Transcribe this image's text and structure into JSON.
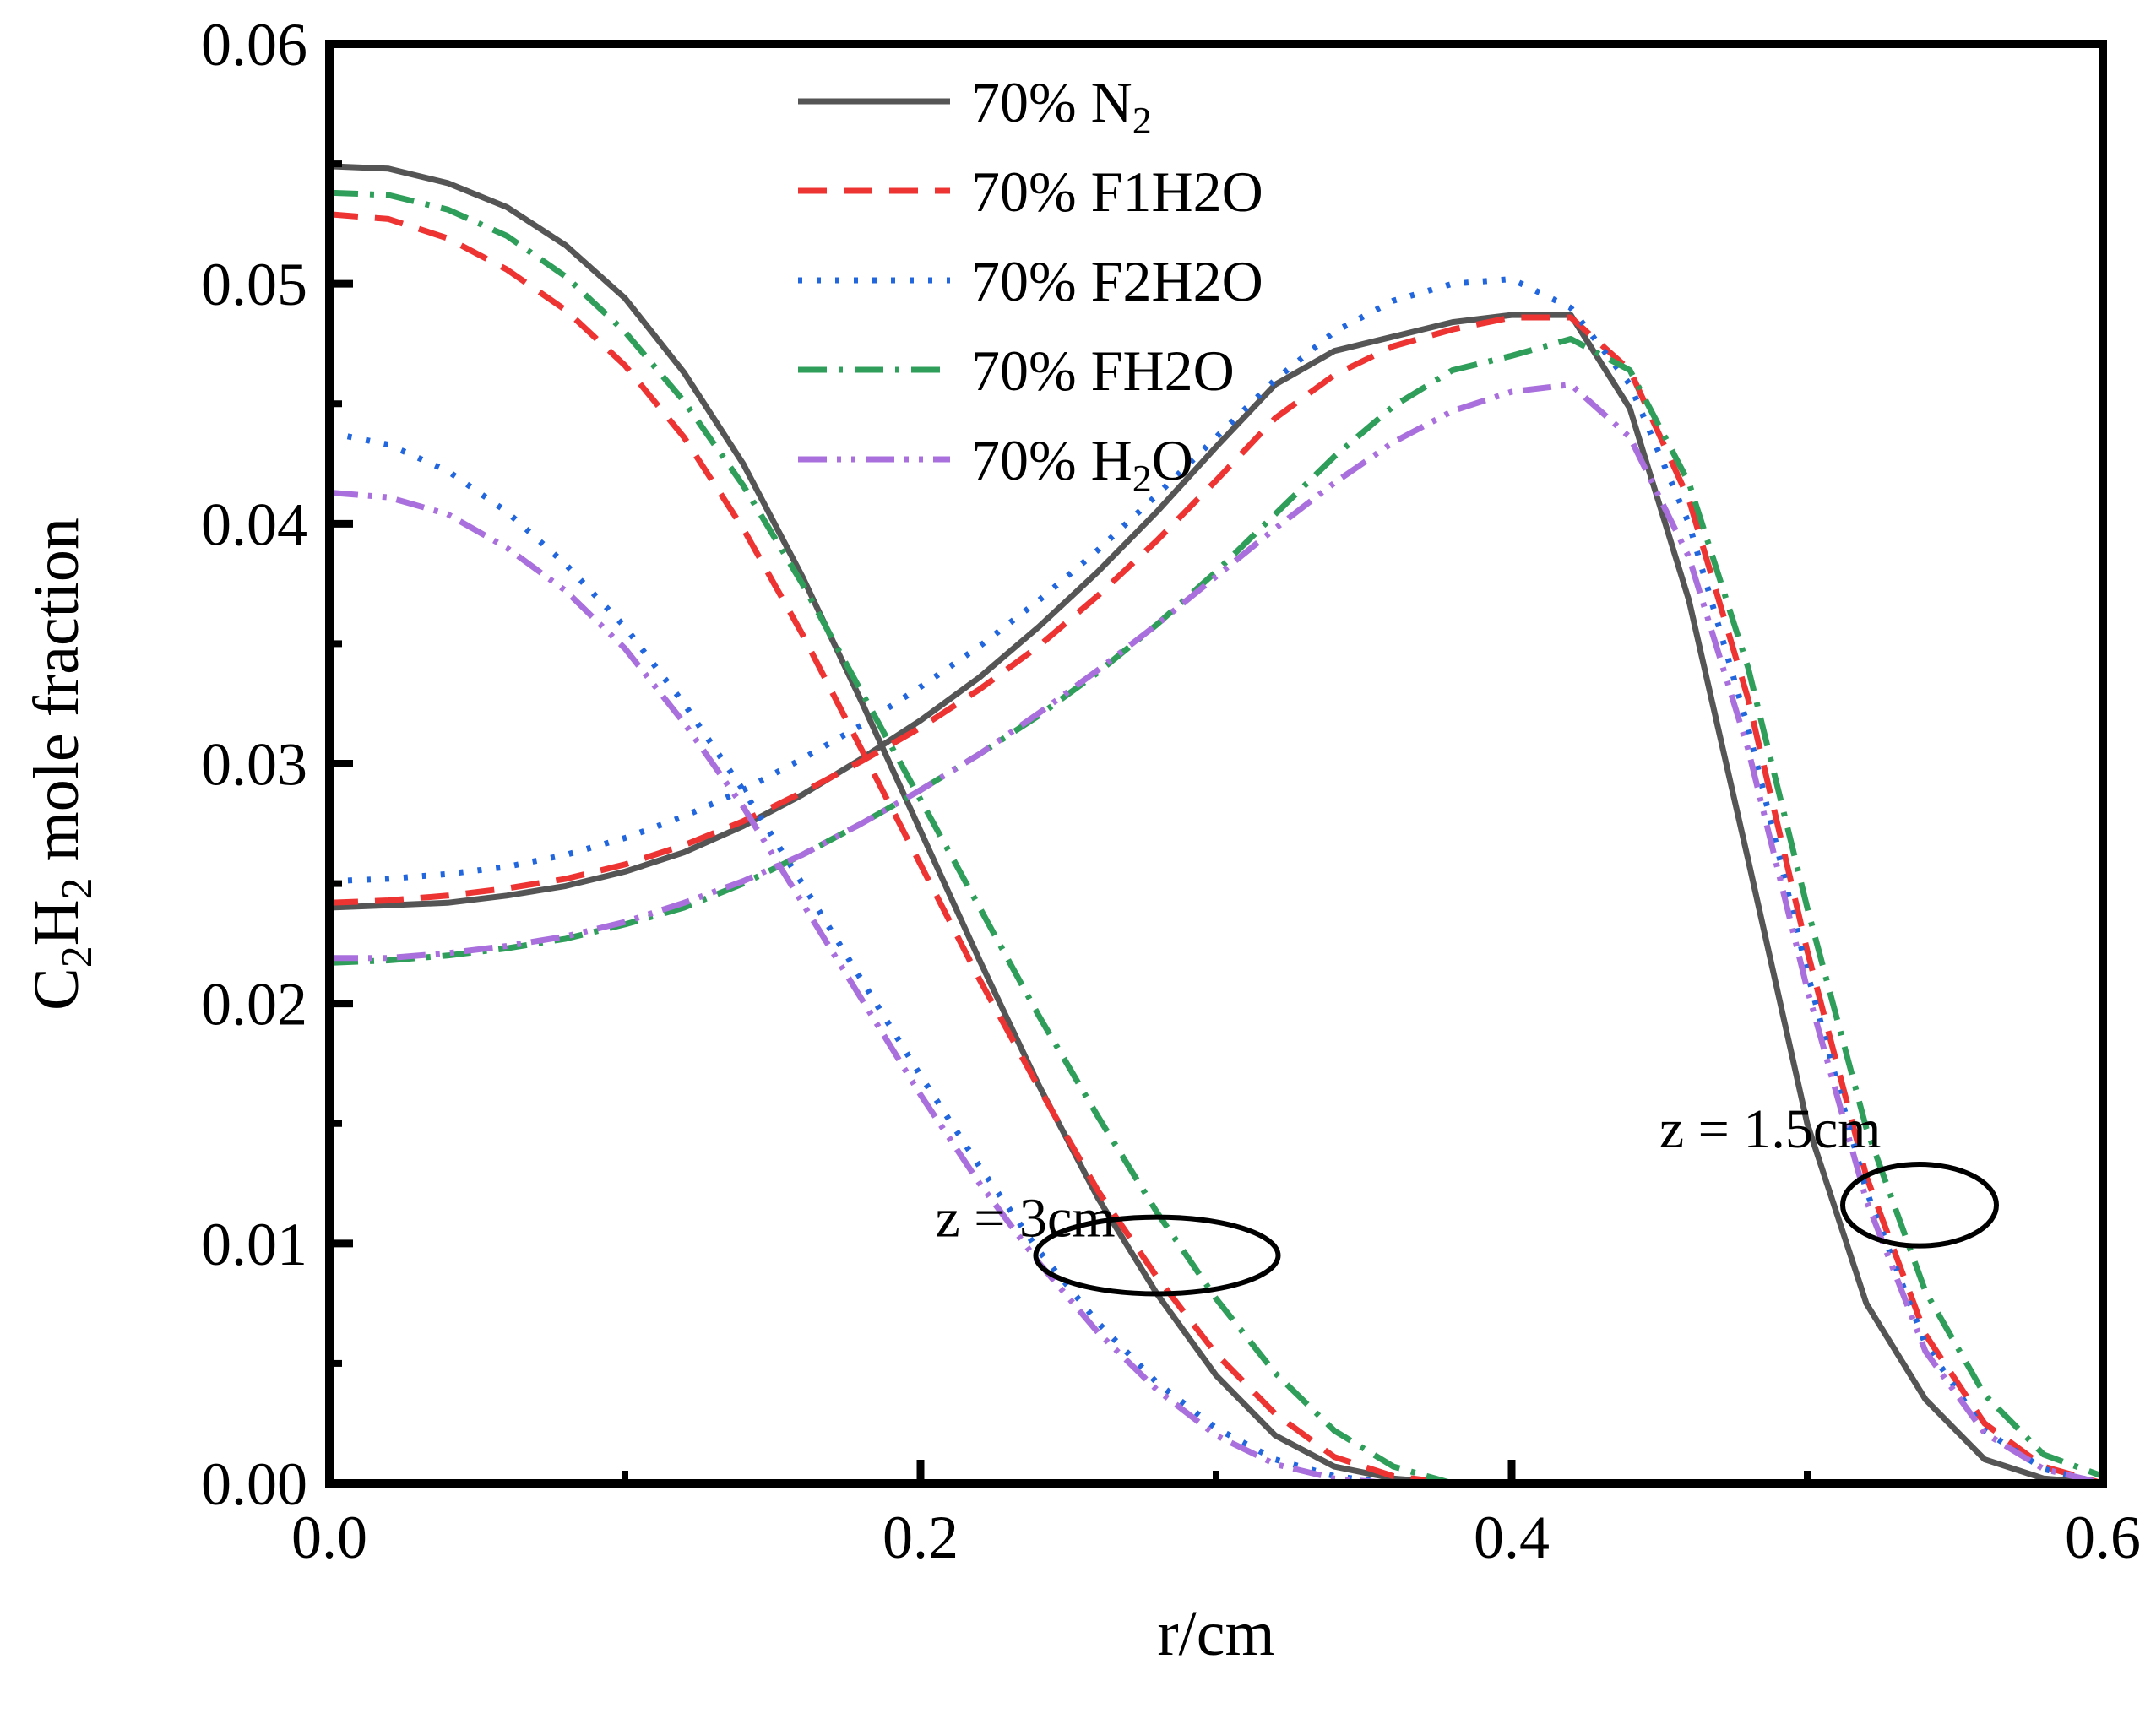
{
  "chart_data": {
    "type": "line",
    "title": "",
    "xlabel": "r/cm",
    "ylabel_parts": [
      "C",
      "2",
      "H",
      "2",
      " mole fraction"
    ],
    "xlim": [
      0.0,
      0.6
    ],
    "ylim": [
      0.0,
      0.06
    ],
    "xticks": [
      0.0,
      0.2,
      0.4,
      0.6
    ],
    "xtick_labels": [
      "0.0",
      "0.2",
      "0.4",
      "0.6"
    ],
    "yticks": [
      0.0,
      0.01,
      0.02,
      0.03,
      0.04,
      0.05,
      0.06
    ],
    "ytick_labels": [
      "0.00",
      "0.01",
      "0.02",
      "0.03",
      "0.04",
      "0.05",
      "0.06"
    ],
    "grid": false,
    "legend_position": "top-center",
    "series": [
      {
        "name": "70% N2",
        "label_main": "70% N",
        "label_sub": "2",
        "color": "#555555",
        "dash": "solid",
        "curves": [
          {
            "group": "z = 3cm",
            "x": [
              0.0,
              0.02,
              0.04,
              0.06,
              0.08,
              0.1,
              0.12,
              0.14,
              0.16,
              0.18,
              0.2,
              0.22,
              0.24,
              0.26,
              0.28,
              0.3,
              0.32,
              0.34,
              0.36,
              0.38,
              0.4,
              0.6
            ],
            "y": [
              0.0549,
              0.0548,
              0.0542,
              0.0532,
              0.0516,
              0.0494,
              0.0463,
              0.0425,
              0.0378,
              0.0326,
              0.0272,
              0.0218,
              0.0166,
              0.0119,
              0.0079,
              0.0045,
              0.002,
              0.0007,
              0.0002,
              0.0,
              0.0,
              0.0
            ]
          },
          {
            "group": "z = 1.5cm",
            "x": [
              0.0,
              0.02,
              0.04,
              0.06,
              0.08,
              0.1,
              0.12,
              0.14,
              0.16,
              0.18,
              0.2,
              0.22,
              0.24,
              0.26,
              0.28,
              0.3,
              0.32,
              0.34,
              0.36,
              0.38,
              0.4,
              0.42,
              0.44,
              0.46,
              0.48,
              0.5,
              0.52,
              0.54,
              0.56,
              0.58,
              0.6
            ],
            "y": [
              0.024,
              0.0241,
              0.0242,
              0.0245,
              0.0249,
              0.0255,
              0.0263,
              0.0274,
              0.0287,
              0.0302,
              0.0318,
              0.0336,
              0.0357,
              0.038,
              0.0405,
              0.0432,
              0.0458,
              0.0472,
              0.0478,
              0.0484,
              0.0487,
              0.0487,
              0.0448,
              0.0368,
              0.026,
              0.015,
              0.0075,
              0.0035,
              0.001,
              0.0002,
              0.0
            ]
          }
        ]
      },
      {
        "name": "70% F1H2O",
        "label_main": "70% F1H2O",
        "label_sub": "",
        "color": "#ee3333",
        "dash": "dash",
        "curves": [
          {
            "group": "z = 3cm",
            "x": [
              0.0,
              0.02,
              0.04,
              0.06,
              0.08,
              0.1,
              0.12,
              0.14,
              0.16,
              0.18,
              0.2,
              0.22,
              0.24,
              0.26,
              0.28,
              0.3,
              0.32,
              0.34,
              0.36,
              0.38,
              0.4,
              0.6
            ],
            "y": [
              0.0529,
              0.0527,
              0.0519,
              0.0506,
              0.0489,
              0.0466,
              0.0436,
              0.0398,
              0.0354,
              0.0306,
              0.0258,
              0.021,
              0.0165,
              0.0122,
              0.0086,
              0.0054,
              0.0029,
              0.0011,
              0.0003,
              0.0,
              0.0,
              0.0
            ]
          },
          {
            "group": "z = 1.5cm",
            "x": [
              0.0,
              0.02,
              0.04,
              0.06,
              0.08,
              0.1,
              0.12,
              0.14,
              0.16,
              0.18,
              0.2,
              0.22,
              0.24,
              0.26,
              0.28,
              0.3,
              0.32,
              0.34,
              0.36,
              0.38,
              0.4,
              0.42,
              0.44,
              0.46,
              0.48,
              0.5,
              0.52,
              0.54,
              0.56,
              0.58,
              0.6
            ],
            "y": [
              0.0242,
              0.0243,
              0.0245,
              0.0248,
              0.0252,
              0.0258,
              0.0266,
              0.0276,
              0.0288,
              0.0301,
              0.0315,
              0.0331,
              0.0349,
              0.037,
              0.0393,
              0.0418,
              0.0444,
              0.0462,
              0.0474,
              0.0481,
              0.0486,
              0.0486,
              0.0464,
              0.041,
              0.0327,
              0.0222,
              0.0128,
              0.0062,
              0.0025,
              0.0007,
              0.0
            ]
          }
        ]
      },
      {
        "name": "70% F2H2O",
        "label_main": "70% F2H2O",
        "label_sub": "",
        "color": "#2266dd",
        "dash": "dot",
        "curves": [
          {
            "group": "z = 3cm",
            "x": [
              0.0,
              0.02,
              0.04,
              0.06,
              0.08,
              0.1,
              0.12,
              0.14,
              0.16,
              0.18,
              0.2,
              0.22,
              0.24,
              0.26,
              0.28,
              0.3,
              0.32,
              0.34,
              0.36,
              0.6
            ],
            "y": [
              0.0438,
              0.0433,
              0.0422,
              0.0405,
              0.0383,
              0.0357,
              0.0325,
              0.0289,
              0.025,
              0.021,
              0.017,
              0.0132,
              0.0097,
              0.0067,
              0.0042,
              0.0023,
              0.001,
              0.0003,
              0.0,
              0.0
            ]
          },
          {
            "group": "z = 1.5cm",
            "x": [
              0.0,
              0.02,
              0.04,
              0.06,
              0.08,
              0.1,
              0.12,
              0.14,
              0.16,
              0.18,
              0.2,
              0.22,
              0.24,
              0.26,
              0.28,
              0.3,
              0.32,
              0.34,
              0.36,
              0.38,
              0.4,
              0.42,
              0.44,
              0.46,
              0.48,
              0.5,
              0.52,
              0.54,
              0.56,
              0.58,
              0.6
            ],
            "y": [
              0.0251,
              0.0252,
              0.0254,
              0.0257,
              0.0262,
              0.0269,
              0.0278,
              0.0289,
              0.0302,
              0.0316,
              0.0332,
              0.0349,
              0.0368,
              0.0389,
              0.0412,
              0.0436,
              0.046,
              0.048,
              0.0493,
              0.05,
              0.0502,
              0.049,
              0.0458,
              0.04,
              0.0315,
              0.0213,
              0.0122,
              0.0058,
              0.0022,
              0.0006,
              0.0
            ]
          }
        ]
      },
      {
        "name": "70% FH2O",
        "label_main": "70% FH2O",
        "label_sub": "",
        "color": "#2f9e5a",
        "dash": "dashdot",
        "curves": [
          {
            "group": "z = 3cm",
            "x": [
              0.0,
              0.02,
              0.04,
              0.06,
              0.08,
              0.1,
              0.12,
              0.14,
              0.16,
              0.18,
              0.2,
              0.22,
              0.24,
              0.26,
              0.28,
              0.3,
              0.32,
              0.34,
              0.36,
              0.38,
              0.4,
              0.6
            ],
            "y": [
              0.0538,
              0.0537,
              0.0531,
              0.052,
              0.0503,
              0.048,
              0.0451,
              0.0416,
              0.0375,
              0.033,
              0.0285,
              0.024,
              0.0195,
              0.0153,
              0.0113,
              0.0077,
              0.0046,
              0.0022,
              0.0007,
              0.0,
              0.0,
              0.0
            ]
          },
          {
            "group": "z = 1.5cm",
            "x": [
              0.0,
              0.02,
              0.04,
              0.06,
              0.08,
              0.1,
              0.12,
              0.14,
              0.16,
              0.18,
              0.2,
              0.22,
              0.24,
              0.26,
              0.28,
              0.3,
              0.32,
              0.34,
              0.36,
              0.38,
              0.4,
              0.42,
              0.44,
              0.46,
              0.48,
              0.5,
              0.52,
              0.54,
              0.56,
              0.58,
              0.6
            ],
            "y": [
              0.0217,
              0.0218,
              0.022,
              0.0223,
              0.0227,
              0.0233,
              0.024,
              0.025,
              0.0262,
              0.0275,
              0.0289,
              0.0304,
              0.032,
              0.0338,
              0.0358,
              0.038,
              0.0404,
              0.0428,
              0.0449,
              0.0464,
              0.047,
              0.0477,
              0.0464,
              0.0417,
              0.034,
              0.024,
              0.0148,
              0.008,
              0.0037,
              0.0012,
              0.0003
            ]
          }
        ]
      },
      {
        "name": "70% H2O",
        "label_main": "70% H",
        "label_sub": "2",
        "label_tail": "O",
        "color": "#a970dd",
        "dash": "dashdotdot",
        "curves": [
          {
            "group": "z = 3cm",
            "x": [
              0.0,
              0.02,
              0.04,
              0.06,
              0.08,
              0.1,
              0.12,
              0.14,
              0.16,
              0.18,
              0.2,
              0.22,
              0.24,
              0.26,
              0.28,
              0.3,
              0.32,
              0.34,
              0.36,
              0.6
            ],
            "y": [
              0.0413,
              0.0411,
              0.0404,
              0.039,
              0.0372,
              0.0348,
              0.0317,
              0.0282,
              0.0242,
              0.0202,
              0.0162,
              0.0125,
              0.0092,
              0.0063,
              0.0039,
              0.002,
              0.0008,
              0.0002,
              0.0,
              0.0
            ]
          },
          {
            "group": "z = 1.5cm",
            "x": [
              0.0,
              0.02,
              0.04,
              0.06,
              0.08,
              0.1,
              0.12,
              0.14,
              0.16,
              0.18,
              0.2,
              0.22,
              0.24,
              0.26,
              0.28,
              0.3,
              0.32,
              0.34,
              0.36,
              0.38,
              0.4,
              0.42,
              0.44,
              0.46,
              0.48,
              0.5,
              0.52,
              0.54,
              0.56,
              0.58,
              0.6
            ],
            "y": [
              0.0219,
              0.0219,
              0.0221,
              0.0224,
              0.0228,
              0.0234,
              0.0242,
              0.0251,
              0.0262,
              0.0275,
              0.0289,
              0.0304,
              0.0321,
              0.0339,
              0.0358,
              0.0378,
              0.0398,
              0.0417,
              0.0434,
              0.0447,
              0.0455,
              0.0458,
              0.0436,
              0.0386,
              0.0306,
              0.0206,
              0.0118,
              0.0055,
              0.0021,
              0.0006,
              0.0
            ]
          }
        ]
      }
    ],
    "annotations": [
      {
        "text": "z = 3cm",
        "x": 0.205,
        "y": 0.0103,
        "anchor": "start"
      },
      {
        "text": "z = 1.5cm",
        "x": 0.525,
        "y": 0.014,
        "anchor": "end"
      }
    ],
    "ellipses": [
      {
        "label": "z = 3cm",
        "cx": 0.28,
        "cy": 0.0095,
        "rx": 0.041,
        "ry": 0.0016
      },
      {
        "label": "z = 1.5cm",
        "cx": 0.538,
        "cy": 0.0116,
        "rx": 0.026,
        "ry": 0.0017
      }
    ]
  }
}
